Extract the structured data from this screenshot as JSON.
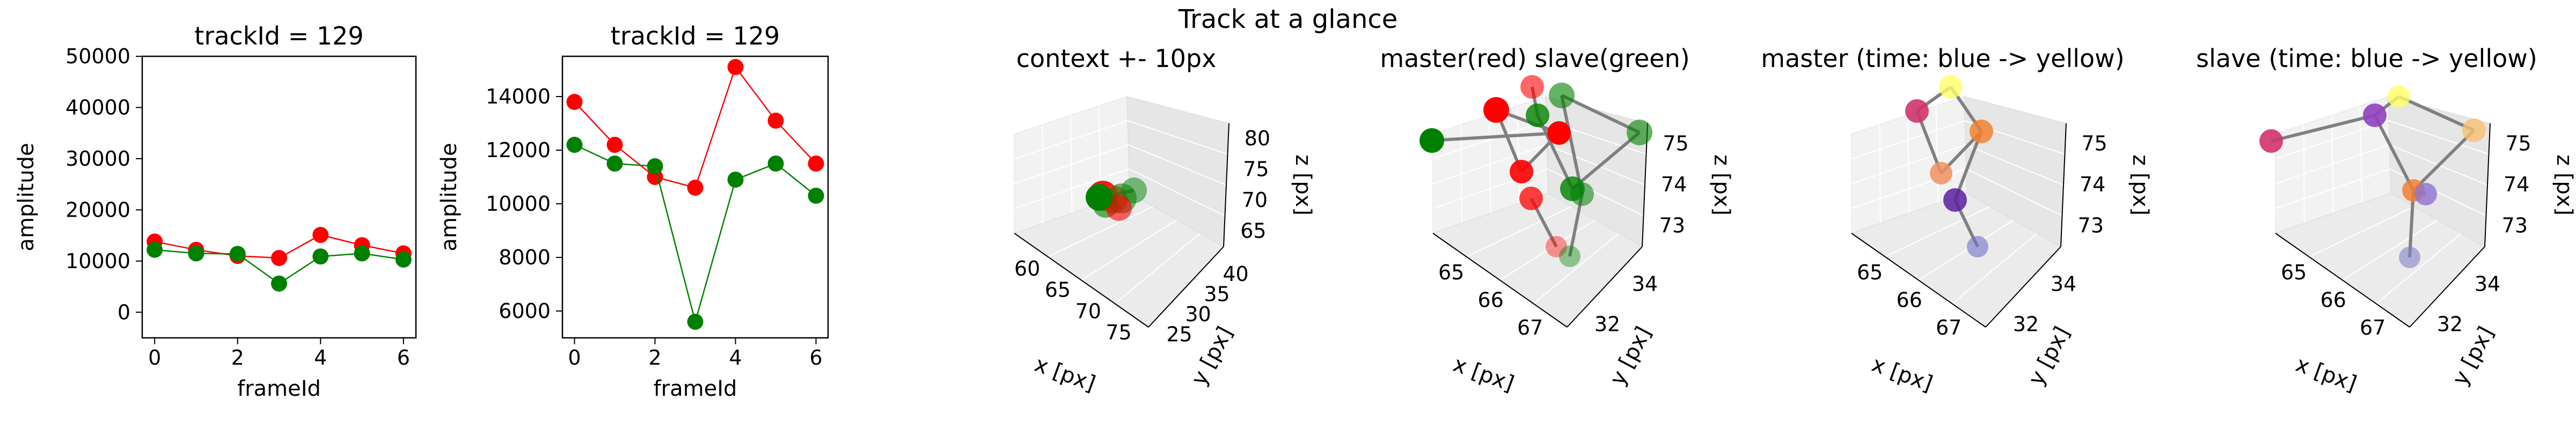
{
  "figure": {
    "suptitle": "Track at a glance"
  },
  "chart_data": [
    {
      "type": "line",
      "title": "trackId = 129",
      "xlabel": "frameId",
      "ylabel": "amplitude",
      "x": [
        0,
        1,
        2,
        3,
        4,
        5,
        6
      ],
      "xticks": [
        0,
        2,
        4,
        6
      ],
      "ylim": [
        -5000,
        50000
      ],
      "yticks": [
        0,
        10000,
        20000,
        30000,
        40000,
        50000
      ],
      "series": [
        {
          "color": "#ff0000",
          "values": [
            13800,
            12200,
            11000,
            10600,
            15100,
            13100,
            11500
          ]
        },
        {
          "color": "#008000",
          "values": [
            12200,
            11500,
            11400,
            5600,
            10900,
            11500,
            10300
          ]
        }
      ]
    },
    {
      "type": "line",
      "title": "trackId = 129",
      "xlabel": "frameId",
      "ylabel": "amplitude",
      "x": [
        0,
        1,
        2,
        3,
        4,
        5,
        6
      ],
      "xticks": [
        0,
        2,
        4,
        6
      ],
      "ylim": [
        5000,
        15500
      ],
      "yticks": [
        6000,
        8000,
        10000,
        12000,
        14000
      ],
      "series": [
        {
          "color": "#ff0000",
          "values": [
            13800,
            12200,
            11000,
            10600,
            15100,
            13100,
            11500
          ]
        },
        {
          "color": "#008000",
          "values": [
            12200,
            11500,
            11400,
            5600,
            10900,
            11500,
            10300
          ]
        }
      ]
    },
    {
      "type": "scatter3d",
      "title": "context +- 10px",
      "xlabel": "x [px]",
      "ylabel": "y [px]",
      "zlabel": "z [px]",
      "xticks": [
        60,
        65,
        70,
        75
      ],
      "yticks": [
        25,
        30,
        35,
        40
      ],
      "zticks": [
        65,
        70,
        75,
        80
      ]
    },
    {
      "type": "scatter3d",
      "title": "master(red) slave(green)",
      "xlabel": "x [px]",
      "ylabel": "y [px]",
      "zlabel": "z [px]",
      "xticks": [
        65,
        66,
        67
      ],
      "yticks": [
        32,
        34
      ],
      "zticks": [
        73,
        74,
        75
      ]
    },
    {
      "type": "scatter3d",
      "title": "master (time: blue -> yellow)",
      "xlabel": "x [px]",
      "ylabel": "y [px]",
      "zlabel": "z [px]",
      "xticks": [
        65,
        66,
        67
      ],
      "yticks": [
        32,
        34
      ],
      "zticks": [
        73,
        74,
        75
      ]
    },
    {
      "type": "scatter3d",
      "title": "slave (time: blue -> yellow)",
      "xlabel": "x [px]",
      "ylabel": "y [px]",
      "zlabel": "z [px]",
      "xticks": [
        65,
        66,
        67
      ],
      "yticks": [
        32,
        34
      ],
      "zticks": [
        73,
        74,
        75
      ]
    }
  ]
}
